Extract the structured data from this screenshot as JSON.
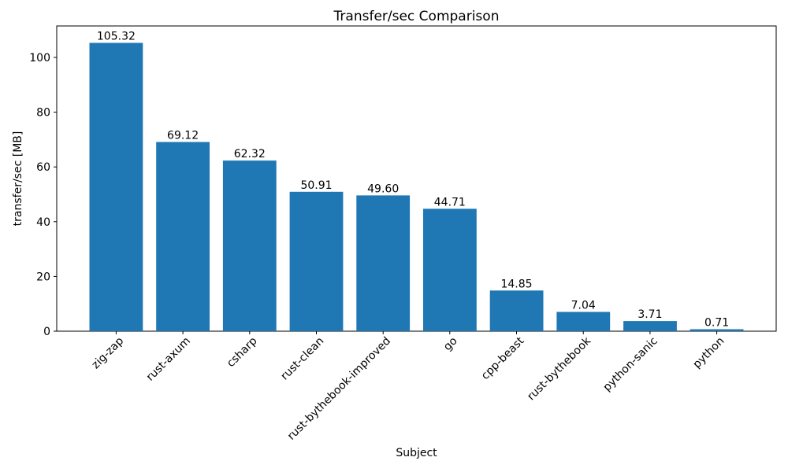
{
  "title": "Transfer/sec Comparison",
  "chart_data": {
    "type": "bar",
    "title": "Transfer/sec Comparison",
    "xlabel": "Subject",
    "ylabel": "transfer/sec [MB]",
    "categories": [
      "zig-zap",
      "rust-axum",
      "csharp",
      "rust-clean",
      "rust-bythebook-improved",
      "go",
      "cpp-beast",
      "rust-bythebook",
      "python-sanic",
      "python"
    ],
    "values": [
      105.32,
      69.12,
      62.32,
      50.91,
      49.6,
      44.71,
      14.85,
      7.04,
      3.71,
      0.71
    ],
    "value_labels": [
      "105.32",
      "69.12",
      "62.32",
      "50.91",
      "49.60",
      "44.71",
      "14.85",
      "7.04",
      "3.71",
      "0.71"
    ],
    "y_ticks": [
      0,
      20,
      40,
      60,
      80,
      100
    ],
    "ylim": [
      0,
      111.5
    ],
    "x_tick_rotation_deg": 45,
    "grid": "off",
    "legend": "none",
    "colors": {
      "bar": "#1f77b4",
      "axis": "#000000",
      "text": "#000000",
      "background": "#ffffff"
    }
  }
}
